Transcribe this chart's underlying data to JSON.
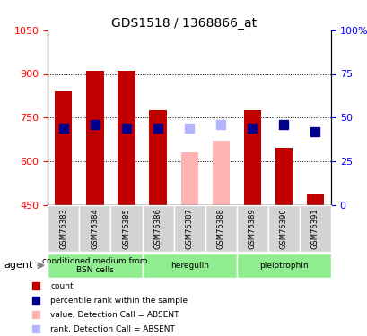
{
  "title": "GDS1518 / 1368866_at",
  "samples": [
    "GSM76383",
    "GSM76384",
    "GSM76385",
    "GSM76386",
    "GSM76387",
    "GSM76388",
    "GSM76389",
    "GSM76390",
    "GSM76391"
  ],
  "counts": [
    840,
    910,
    910,
    775,
    630,
    670,
    775,
    645,
    490
  ],
  "absent": [
    false,
    false,
    false,
    false,
    true,
    true,
    false,
    false,
    false
  ],
  "percentiles": [
    44,
    46,
    44,
    44,
    44,
    46,
    44,
    46,
    42
  ],
  "baseline": 450,
  "ylim": [
    450,
    1050
  ],
  "ylim_right": [
    0,
    100
  ],
  "yticks_left": [
    450,
    600,
    750,
    900,
    1050
  ],
  "yticks_right": [
    0,
    25,
    50,
    75,
    100
  ],
  "ytick_labels_left": [
    "450",
    "600",
    "750",
    "900",
    "1050"
  ],
  "ytick_labels_right": [
    "0",
    "25",
    "50",
    "75",
    "100%"
  ],
  "bar_color_present": "#c00000",
  "bar_color_absent": "#ffb3b3",
  "rank_color_present": "#00008b",
  "rank_color_absent": "#b3b3ff",
  "rank_marker_size": 60,
  "agents": [
    {
      "label": "conditioned medium from\nBSN cells",
      "start": 0,
      "end": 3,
      "color": "#90ee90"
    },
    {
      "label": "heregulin",
      "start": 3,
      "end": 6,
      "color": "#90ee90"
    },
    {
      "label": "pleiotrophin",
      "start": 6,
      "end": 9,
      "color": "#90ee90"
    }
  ],
  "legend_items": [
    {
      "label": "count",
      "color": "#c00000",
      "marker": "s"
    },
    {
      "label": "percentile rank within the sample",
      "color": "#00008b",
      "marker": "s"
    },
    {
      "label": "value, Detection Call = ABSENT",
      "color": "#ffb3b3",
      "marker": "s"
    },
    {
      "label": "rank, Detection Call = ABSENT",
      "color": "#b3b3ff",
      "marker": "s"
    }
  ],
  "agent_label": "agent",
  "bar_width": 0.55
}
